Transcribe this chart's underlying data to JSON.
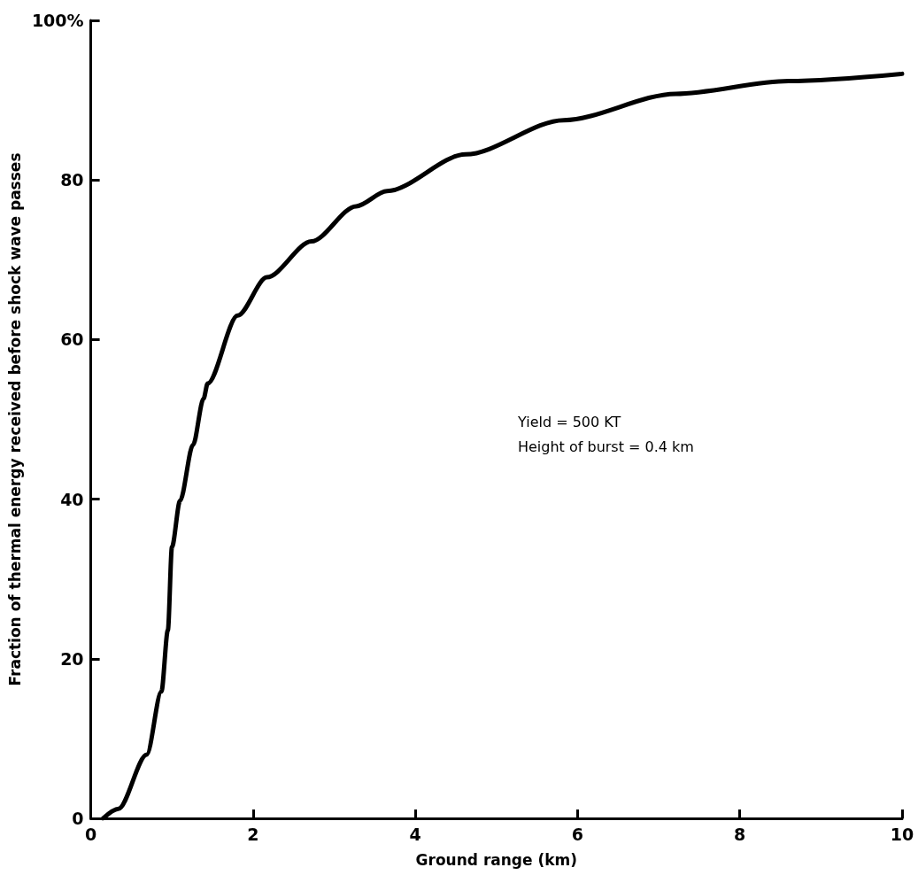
{
  "chart_data": {
    "type": "line",
    "xlabel": "Ground range (km)",
    "ylabel": "Fraction of thermal energy received before shock wave passes",
    "x": [
      0.15,
      0.34,
      0.69,
      0.87,
      0.95,
      1.0,
      1.1,
      1.26,
      1.39,
      1.44,
      1.81,
      2.17,
      2.72,
      3.27,
      3.65,
      4.62,
      5.83,
      7.21,
      8.6,
      10
    ],
    "series": [
      {
        "color": "#000000",
        "values": [
          0,
          1.2,
          8,
          15.9,
          23.6,
          34,
          39.8,
          46.8,
          52.6,
          54.5,
          63,
          67.8,
          72.3,
          76.7,
          78.6,
          83.2,
          87.5,
          90.8,
          92.4,
          93.3
        ]
      }
    ],
    "xlim": [
      0,
      10
    ],
    "xticks": [
      0,
      2,
      4,
      6,
      8,
      10
    ],
    "ylim": [
      0,
      100
    ],
    "yticks": [
      0,
      20,
      40,
      60,
      80,
      {
        "value": 100,
        "label": "100%"
      }
    ],
    "annotations": [
      "Yield = 500 KT",
      "Height of burst = 0.4 km"
    ],
    "grid": false,
    "marker": "none",
    "line_style": "solid"
  }
}
